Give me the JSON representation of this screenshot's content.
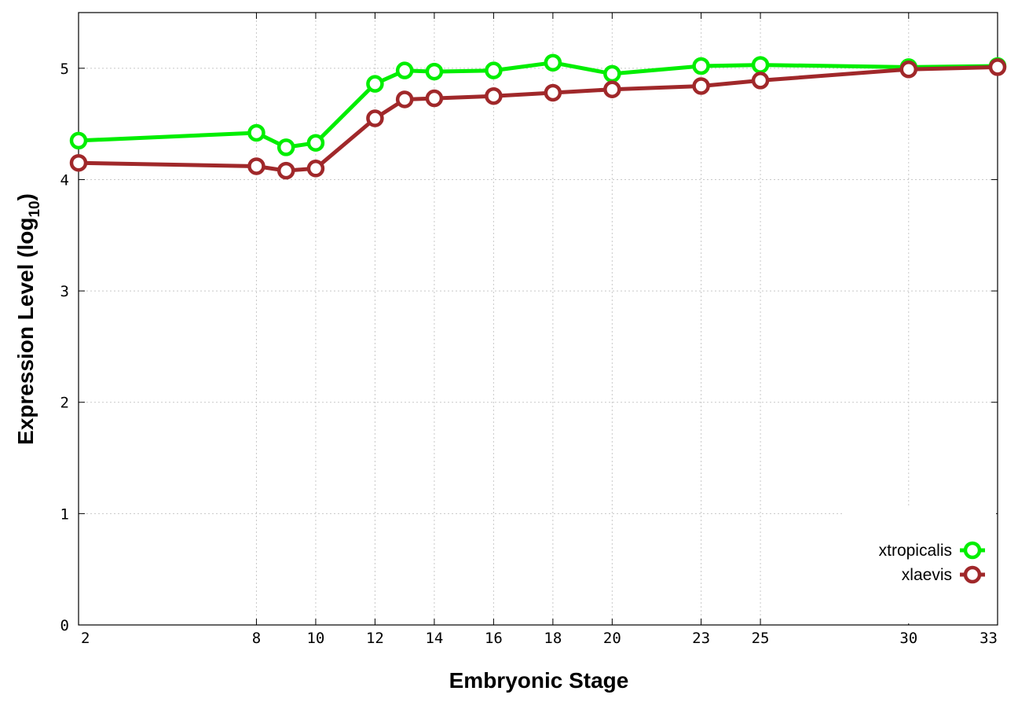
{
  "chart_data": {
    "type": "line",
    "xlabel": "Embryonic Stage",
    "ylabel": "Expression Level (log",
    "ylabel_sub": "10",
    "ylabel_close": ")",
    "xlim": [
      2,
      33
    ],
    "ylim": [
      0,
      5.5
    ],
    "x_ticks": [
      2,
      8,
      10,
      12,
      14,
      16,
      18,
      20,
      23,
      25,
      30,
      33
    ],
    "x_tick_labels": [
      "2",
      "8",
      "10",
      "12",
      "14",
      "16",
      "18",
      "20",
      "23",
      "25",
      "30",
      "33"
    ],
    "y_ticks": [
      0,
      1,
      2,
      3,
      4,
      5
    ],
    "y_tick_labels": [
      "0",
      "1",
      "2",
      "3",
      "4",
      "5"
    ],
    "grid": true,
    "legend_position": "bottom-right",
    "x": [
      2,
      8,
      9,
      10,
      12,
      13,
      14,
      16,
      18,
      20,
      23,
      25,
      30,
      33
    ],
    "series": [
      {
        "name": "xtropicalis",
        "color": "#00ee00",
        "values": [
          4.35,
          4.42,
          4.29,
          4.33,
          4.86,
          4.98,
          4.97,
          4.98,
          5.05,
          4.95,
          5.02,
          5.03,
          5.01,
          5.02
        ]
      },
      {
        "name": "xlaevis",
        "color": "#a0282a",
        "values": [
          4.15,
          4.12,
          4.08,
          4.1,
          4.55,
          4.72,
          4.73,
          4.75,
          4.78,
          4.81,
          4.84,
          4.89,
          4.99,
          5.01
        ]
      }
    ]
  }
}
